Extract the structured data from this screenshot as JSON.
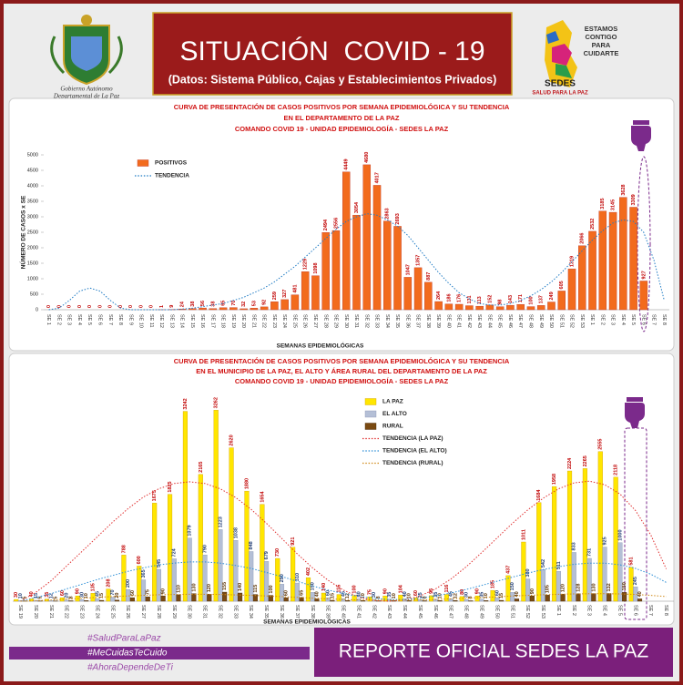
{
  "header": {
    "title": "SITUACIÓN  COVID - 19",
    "subtitle": "(Datos: Sistema Público, Cajas y Establecimientos Privados)",
    "left_logo_text": [
      "Gobierno Autónomo",
      "Departamental de La Paz"
    ],
    "right_logo_text": [
      "ESTAMOS",
      "CONTIGO",
      "PARA",
      "CUIDARTE"
    ],
    "right_logo_name": "SEDES",
    "right_logo_slogan": "SALUD PARA LA PAZ"
  },
  "footer": {
    "hashtags": [
      "#SaludParaLaPaz",
      "#MeCuidasTeCuido",
      "#AhoraDependeDeTi"
    ],
    "banner": "REPORTE OFICIAL SEDES LA PAZ"
  },
  "chart_data": [
    {
      "type": "bar",
      "title": [
        "CURVA DE PRESENTACIÓN DE CASOS POSITIVOS POR SEMANA EPIDEMIOLÓGICA Y SU TENDENCIA",
        "EN EL DEPARTAMENTO DE LA PAZ",
        "COMANDO COVID 19 - UNIDAD EPIDEMIOLOGÍA - SEDES LA PAZ"
      ],
      "ylabel": "NÚMERO DE CASOS x SE",
      "xlabel": "SEMANAS EPIDEMIOLÓGICAS",
      "categories": [
        "SE 1",
        "SE 2",
        "SE 3",
        "SE 4",
        "SE 5",
        "SE 6",
        "SE 7",
        "SE 8",
        "SE 9",
        "SE 10",
        "SE 11",
        "SE 12",
        "SE 13",
        "SE 14",
        "SE 15",
        "SE 16",
        "SE 17",
        "SE 18",
        "SE 19",
        "SE 20",
        "SE 21",
        "SE 22",
        "SE 23",
        "SE 24",
        "SE 25",
        "SE 26",
        "SE 27",
        "SE 28",
        "SE 29",
        "SE 30",
        "SE 31",
        "SE 32",
        "SE 33",
        "SE 34",
        "SE 35",
        "SE 36",
        "SE 37",
        "SE 38",
        "SE 39",
        "SE 40",
        "SE 41",
        "SE 42",
        "SE 43",
        "SE 44",
        "SE 45",
        "SE 46",
        "SE 47",
        "SE 48",
        "SE 49",
        "SE 50",
        "SE 51",
        "SE 52",
        "SE 53",
        "SE 1",
        "SE 2",
        "SE 3",
        "SE 4",
        "SE 5",
        "SE 6",
        "SE 7",
        "SE 8"
      ],
      "series": [
        {
          "name": "POSITIVOS",
          "color": "#f26b1d",
          "values": [
            0,
            0,
            0,
            0,
            0,
            0,
            0,
            0,
            0,
            0,
            0,
            1,
            9,
            24,
            38,
            56,
            38,
            65,
            70,
            32,
            53,
            92,
            259,
            327,
            481,
            1229,
            1098,
            2494,
            2556,
            4449,
            3054,
            4680,
            4017,
            2863,
            2693,
            1047,
            1357,
            887,
            264,
            186,
            176,
            131,
            113,
            152,
            98,
            143,
            171,
            100,
            137,
            249,
            605,
            1319,
            2066,
            2532,
            3185,
            3145,
            3628,
            3309,
            927,
            null,
            null
          ]
        },
        {
          "name": "TENDENCIA",
          "type": "line",
          "linestyle": "dotted",
          "color": "#1f7bc4",
          "values": [
            0,
            50,
            300,
            600,
            700,
            600,
            300,
            50,
            0,
            0,
            0,
            0,
            0,
            20,
            50,
            100,
            150,
            200,
            300,
            400,
            550,
            700,
            900,
            1150,
            1400,
            1700,
            2000,
            2300,
            2600,
            2850,
            3000,
            3100,
            3050,
            2900,
            2700,
            2400,
            2000,
            1600,
            1200,
            850,
            550,
            350,
            200,
            150,
            150,
            200,
            300,
            450,
            650,
            900,
            1200,
            1550,
            1900,
            2250,
            2550,
            2800,
            2900,
            2850,
            2500,
            1600,
            300
          ]
        }
      ],
      "ylim": [
        0,
        5000
      ],
      "yticks": [
        0,
        500,
        1000,
        1500,
        2000,
        2500,
        3000,
        3500,
        4000,
        4500,
        5000
      ],
      "grid": false,
      "legend": "upper left"
    },
    {
      "type": "bar",
      "title": [
        "CURVA DE PRESENTACIÓN DE CASOS POSITIVOS POR SEMANA EPIDEMIOLÓGICA Y SU TENDENCIA",
        "EN EL  MUNICIPIO DE LA PAZ, EL ALTO Y ÁREA RURAL DEL DEPARTAMENTO DE LA PAZ",
        "COMANDO COVID 19 - UNIDAD EPIDEMIOLOGÍA - SEDES LA PAZ"
      ],
      "xlabel": "SEMANAS EPIDEMIOLÓGICAS",
      "categories": [
        "SE 19",
        "SE 20",
        "SE 21",
        "SE 22",
        "SE 23",
        "SE 24",
        "SE 25",
        "SE 26",
        "SE 27",
        "SE 28",
        "SE 29",
        "SE 30",
        "SE 31",
        "SE 32",
        "SE 33",
        "SE 34",
        "SE 35",
        "SE 36",
        "SE 37",
        "SE 38",
        "SE 39",
        "SE 40",
        "SE 41",
        "SE 42",
        "SE 43",
        "SE 44",
        "SE 45",
        "SE 46",
        "SE 47",
        "SE 48",
        "SE 49",
        "SE 50",
        "SE 51",
        "SE 52",
        "SE 53",
        "SE 1",
        "SE 2",
        "SE 3",
        "SE 4",
        "SE 5",
        "SE 6",
        "SE 7",
        "SE 8"
      ],
      "series": [
        {
          "name": "LA PAZ",
          "color": "#ffe600",
          "values": [
            30,
            40,
            35,
            60,
            90,
            135,
            208,
            788,
            600,
            1675,
            1825,
            3242,
            2165,
            3262,
            2620,
            1880,
            1654,
            730,
            921,
            402,
            140,
            115,
            100,
            75,
            90,
            104,
            60,
            95,
            116,
            80,
            90,
            185,
            437,
            1011,
            1684,
            1958,
            2224,
            2265,
            2555,
            2118,
            581,
            null,
            null
          ]
        },
        {
          "name": "EL ALTO",
          "color": "#b4bfd6",
          "values": [
            10,
            15,
            12,
            20,
            30,
            45,
            70,
            200,
            365,
            545,
            724,
            1079,
            790,
            1223,
            1038,
            848,
            679,
            290,
            310,
            150,
            60,
            45,
            40,
            30,
            35,
            40,
            25,
            35,
            45,
            30,
            35,
            60,
            150,
            380,
            542,
            511,
            833,
            731,
            925,
            1000,
            245,
            null,
            null
          ]
        },
        {
          "name": "RURAL",
          "color": "#7a4a12",
          "values": [
            5,
            5,
            5,
            8,
            10,
            15,
            20,
            60,
            75,
            90,
            110,
            130,
            120,
            155,
            140,
            115,
            100,
            60,
            65,
            40,
            15,
            12,
            10,
            8,
            10,
            10,
            8,
            10,
            12,
            8,
            10,
            15,
            40,
            90,
            105,
            120,
            128,
            130,
            132,
            150,
            40,
            null,
            null
          ]
        },
        {
          "name": "TENDENCIA (LA PAZ)",
          "type": "line",
          "linestyle": "dotted",
          "color": "#e03030",
          "values": [
            0,
            150,
            350,
            600,
            850,
            1100,
            1350,
            1580,
            1780,
            1920,
            2010,
            2040,
            2010,
            1920,
            1770,
            1570,
            1330,
            1070,
            810,
            570,
            360,
            190,
            70,
            10,
            0,
            20,
            90,
            210,
            380,
            590,
            830,
            1080,
            1330,
            1560,
            1760,
            1920,
            2020,
            2050,
            1990,
            1830,
            1550,
            1130,
            550
          ]
        },
        {
          "name": "TENDENCIA (EL ALTO)",
          "type": "line",
          "linestyle": "dotted",
          "color": "#2c8ed6",
          "values": [
            0,
            60,
            130,
            210,
            290,
            370,
            440,
            510,
            570,
            620,
            650,
            670,
            670,
            650,
            610,
            560,
            490,
            420,
            340,
            260,
            190,
            130,
            80,
            50,
            30,
            30,
            50,
            90,
            140,
            200,
            270,
            340,
            410,
            480,
            540,
            590,
            630,
            650,
            650,
            620,
            560,
            460,
            320
          ]
        },
        {
          "name": "TENDENCIA (RURAL)",
          "type": "line",
          "linestyle": "dotted",
          "color": "#d08a1a",
          "values": [
            0,
            10,
            20,
            35,
            50,
            65,
            80,
            90,
            100,
            110,
            115,
            118,
            118,
            115,
            108,
            100,
            90,
            78,
            65,
            52,
            40,
            30,
            22,
            18,
            16,
            18,
            22,
            30,
            40,
            50,
            62,
            75,
            88,
            100,
            110,
            118,
            124,
            128,
            128,
            124,
            115,
            100,
            80
          ]
        }
      ],
      "ylim": [
        0,
        3500
      ],
      "grid": false,
      "legend": "upper right"
    }
  ]
}
